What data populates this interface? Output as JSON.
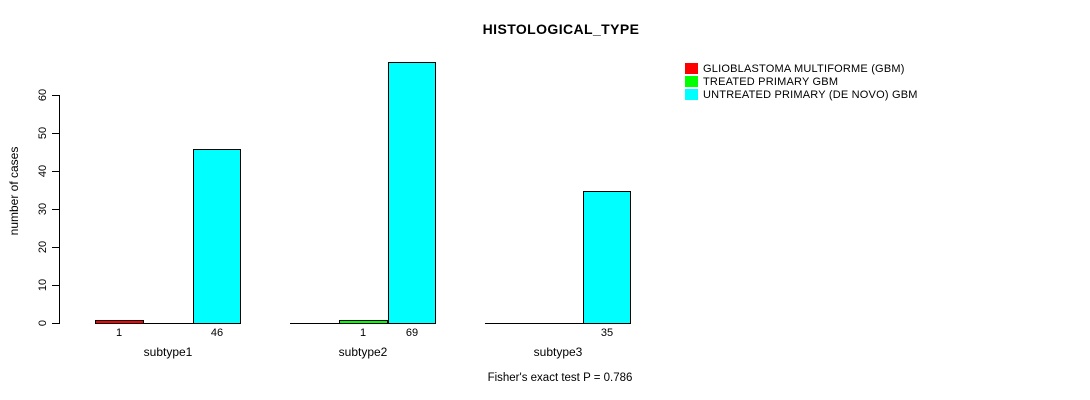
{
  "chart_data": {
    "type": "bar",
    "title": "HISTOLOGICAL_TYPE",
    "ylabel": "number of cases",
    "xlabel": "",
    "categories": [
      "subtype1",
      "subtype2",
      "subtype3"
    ],
    "series": [
      {
        "name": "GLIOBLASTOMA MULTIFORME (GBM)",
        "color": "#ff0000",
        "values": [
          1,
          0,
          0
        ]
      },
      {
        "name": "TREATED PRIMARY GBM",
        "color": "#00ff00",
        "values": [
          0,
          1,
          0
        ]
      },
      {
        "name": "UNTREATED PRIMARY (DE NOVO) GBM",
        "color": "#00ffff",
        "values": [
          46,
          69,
          35
        ]
      }
    ],
    "bar_value_labels": [
      [
        "1",
        "46"
      ],
      [
        "1",
        "69"
      ],
      [
        "35"
      ]
    ],
    "yticks": [
      0,
      10,
      20,
      30,
      40,
      50,
      60
    ],
    "ylim": [
      0,
      69
    ],
    "grid": false,
    "legend_position": "right",
    "footnote": "Fisher's exact test P = 0.786",
    "colors": {
      "axis": "#000000",
      "background": "#ffffff",
      "text": "#000000"
    }
  }
}
